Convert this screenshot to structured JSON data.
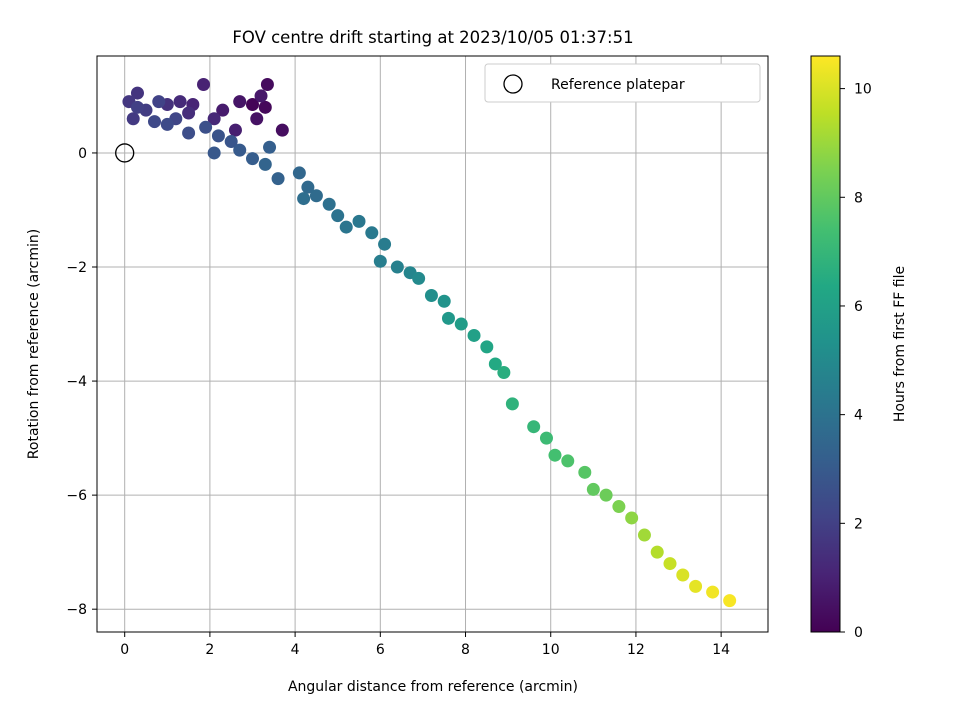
{
  "chart_data": {
    "type": "scatter",
    "title": "FOV centre drift starting at 2023/10/05 01:37:51",
    "xlabel": "Angular distance from reference (arcmin)",
    "ylabel": "Rotation from reference (arcmin)",
    "xlim": [
      -0.65,
      15.1
    ],
    "ylim": [
      -8.4,
      1.7
    ],
    "x_ticks": [
      0,
      2,
      4,
      6,
      8,
      10,
      12,
      14
    ],
    "x_tick_labels": [
      "0",
      "2",
      "4",
      "6",
      "8",
      "10",
      "12",
      "14"
    ],
    "y_ticks": [
      0,
      -2,
      -4,
      -6,
      -8
    ],
    "y_tick_labels": [
      "0",
      "−2",
      "−4",
      "−6",
      "−8"
    ],
    "grid": true,
    "legend": {
      "placement": "top-right",
      "entries": [
        "Reference platepar"
      ]
    },
    "reference_point": {
      "x": 0,
      "y": 0
    },
    "colorbar": {
      "label": "Hours from first FF file",
      "colormap": "viridis",
      "range": [
        0,
        10.6
      ],
      "ticks": [
        0,
        2,
        4,
        6,
        8,
        10
      ],
      "tick_labels": [
        "0",
        "2",
        "4",
        "6",
        "8",
        "10"
      ]
    },
    "series": [
      {
        "columns": [
          "x",
          "y",
          "hours"
        ],
        "points": [
          [
            3.0,
            0.85,
            0.1
          ],
          [
            3.3,
            0.8,
            0.2
          ],
          [
            3.35,
            1.2,
            0.3
          ],
          [
            3.7,
            0.4,
            0.4
          ],
          [
            3.1,
            0.6,
            0.5
          ],
          [
            2.7,
            0.9,
            0.6
          ],
          [
            3.2,
            1.0,
            0.7
          ],
          [
            2.3,
            0.75,
            0.8
          ],
          [
            2.6,
            0.4,
            0.9
          ],
          [
            1.85,
            1.2,
            1.0
          ],
          [
            1.6,
            0.85,
            1.1
          ],
          [
            2.1,
            0.6,
            1.2
          ],
          [
            1.3,
            0.9,
            1.3
          ],
          [
            1.5,
            0.7,
            1.4
          ],
          [
            1.0,
            0.85,
            1.5
          ],
          [
            0.3,
            1.05,
            1.6
          ],
          [
            0.1,
            0.9,
            1.7
          ],
          [
            0.2,
            0.6,
            1.8
          ],
          [
            0.5,
            0.75,
            1.9
          ],
          [
            0.3,
            0.8,
            2.0
          ],
          [
            0.8,
            0.9,
            2.1
          ],
          [
            1.2,
            0.6,
            2.2
          ],
          [
            0.7,
            0.55,
            2.3
          ],
          [
            1.0,
            0.5,
            2.4
          ],
          [
            1.5,
            0.35,
            2.5
          ],
          [
            1.9,
            0.45,
            2.6
          ],
          [
            2.2,
            0.3,
            2.7
          ],
          [
            2.5,
            0.2,
            2.8
          ],
          [
            2.1,
            0.0,
            2.9
          ],
          [
            2.7,
            0.05,
            3.0
          ],
          [
            3.0,
            -0.1,
            3.1
          ],
          [
            3.4,
            0.1,
            3.2
          ],
          [
            3.6,
            -0.45,
            3.3
          ],
          [
            3.3,
            -0.2,
            3.4
          ],
          [
            4.1,
            -0.35,
            3.5
          ],
          [
            4.3,
            -0.6,
            3.6
          ],
          [
            4.5,
            -0.75,
            3.7
          ],
          [
            4.2,
            -0.8,
            3.8
          ],
          [
            4.8,
            -0.9,
            3.9
          ],
          [
            5.0,
            -1.1,
            4.0
          ],
          [
            5.2,
            -1.3,
            4.1
          ],
          [
            5.5,
            -1.2,
            4.2
          ],
          [
            5.8,
            -1.4,
            4.3
          ],
          [
            6.1,
            -1.6,
            4.4
          ],
          [
            6.0,
            -1.9,
            4.5
          ],
          [
            6.4,
            -2.0,
            4.6
          ],
          [
            6.7,
            -2.1,
            4.8
          ],
          [
            6.9,
            -2.2,
            5.0
          ],
          [
            7.2,
            -2.5,
            5.2
          ],
          [
            7.5,
            -2.6,
            5.4
          ],
          [
            7.6,
            -2.9,
            5.6
          ],
          [
            7.9,
            -3.0,
            5.8
          ],
          [
            8.2,
            -3.2,
            6.0
          ],
          [
            8.5,
            -3.4,
            6.2
          ],
          [
            8.7,
            -3.7,
            6.4
          ],
          [
            8.9,
            -3.85,
            6.6
          ],
          [
            9.1,
            -4.4,
            6.8
          ],
          [
            9.6,
            -4.8,
            7.0
          ],
          [
            9.9,
            -5.0,
            7.2
          ],
          [
            10.1,
            -5.3,
            7.4
          ],
          [
            10.4,
            -5.4,
            7.6
          ],
          [
            10.8,
            -5.6,
            7.8
          ],
          [
            11.0,
            -5.9,
            8.0
          ],
          [
            11.3,
            -6.0,
            8.2
          ],
          [
            11.6,
            -6.2,
            8.5
          ],
          [
            11.9,
            -6.4,
            8.8
          ],
          [
            12.2,
            -6.7,
            9.1
          ],
          [
            12.5,
            -7.0,
            9.4
          ],
          [
            12.8,
            -7.2,
            9.7
          ],
          [
            13.1,
            -7.4,
            10.0
          ],
          [
            13.4,
            -7.6,
            10.2
          ],
          [
            13.8,
            -7.7,
            10.4
          ],
          [
            14.2,
            -7.85,
            10.5
          ]
        ]
      }
    ]
  }
}
